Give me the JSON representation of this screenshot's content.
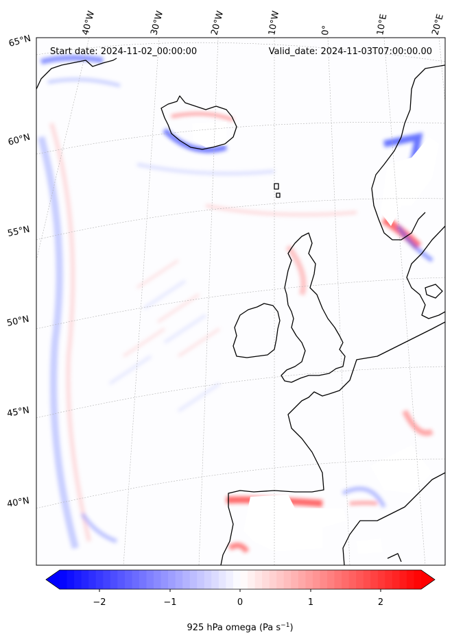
{
  "map": {
    "start_label": "Start date: 2024-11-02_00:00:00",
    "valid_label": "Valid_date: 2024-11-03T07:00:00.00",
    "lon_labels": [
      "40°W",
      "30°W",
      "20°W",
      "10°W",
      "0°",
      "10°E",
      "20°E"
    ],
    "lat_labels": [
      "65°N",
      "60°N",
      "55°N",
      "50°N",
      "45°N",
      "40°N"
    ],
    "colorbar": {
      "label": "925 hPa omega (Pa s",
      "unit_exponent": "−1",
      "label_close": ")",
      "ticks": [
        "−2",
        "−1",
        "0",
        "1",
        "2"
      ],
      "min": -2.5,
      "max": 2.5,
      "color_negative": "#0000ff",
      "color_zero": "#ffffff",
      "color_positive": "#ff0000"
    },
    "colors": {
      "coastline": "#000000",
      "gridline": "#b0b0b0",
      "field_negative": "#3a4cff",
      "field_positive": "#ff3030"
    }
  }
}
